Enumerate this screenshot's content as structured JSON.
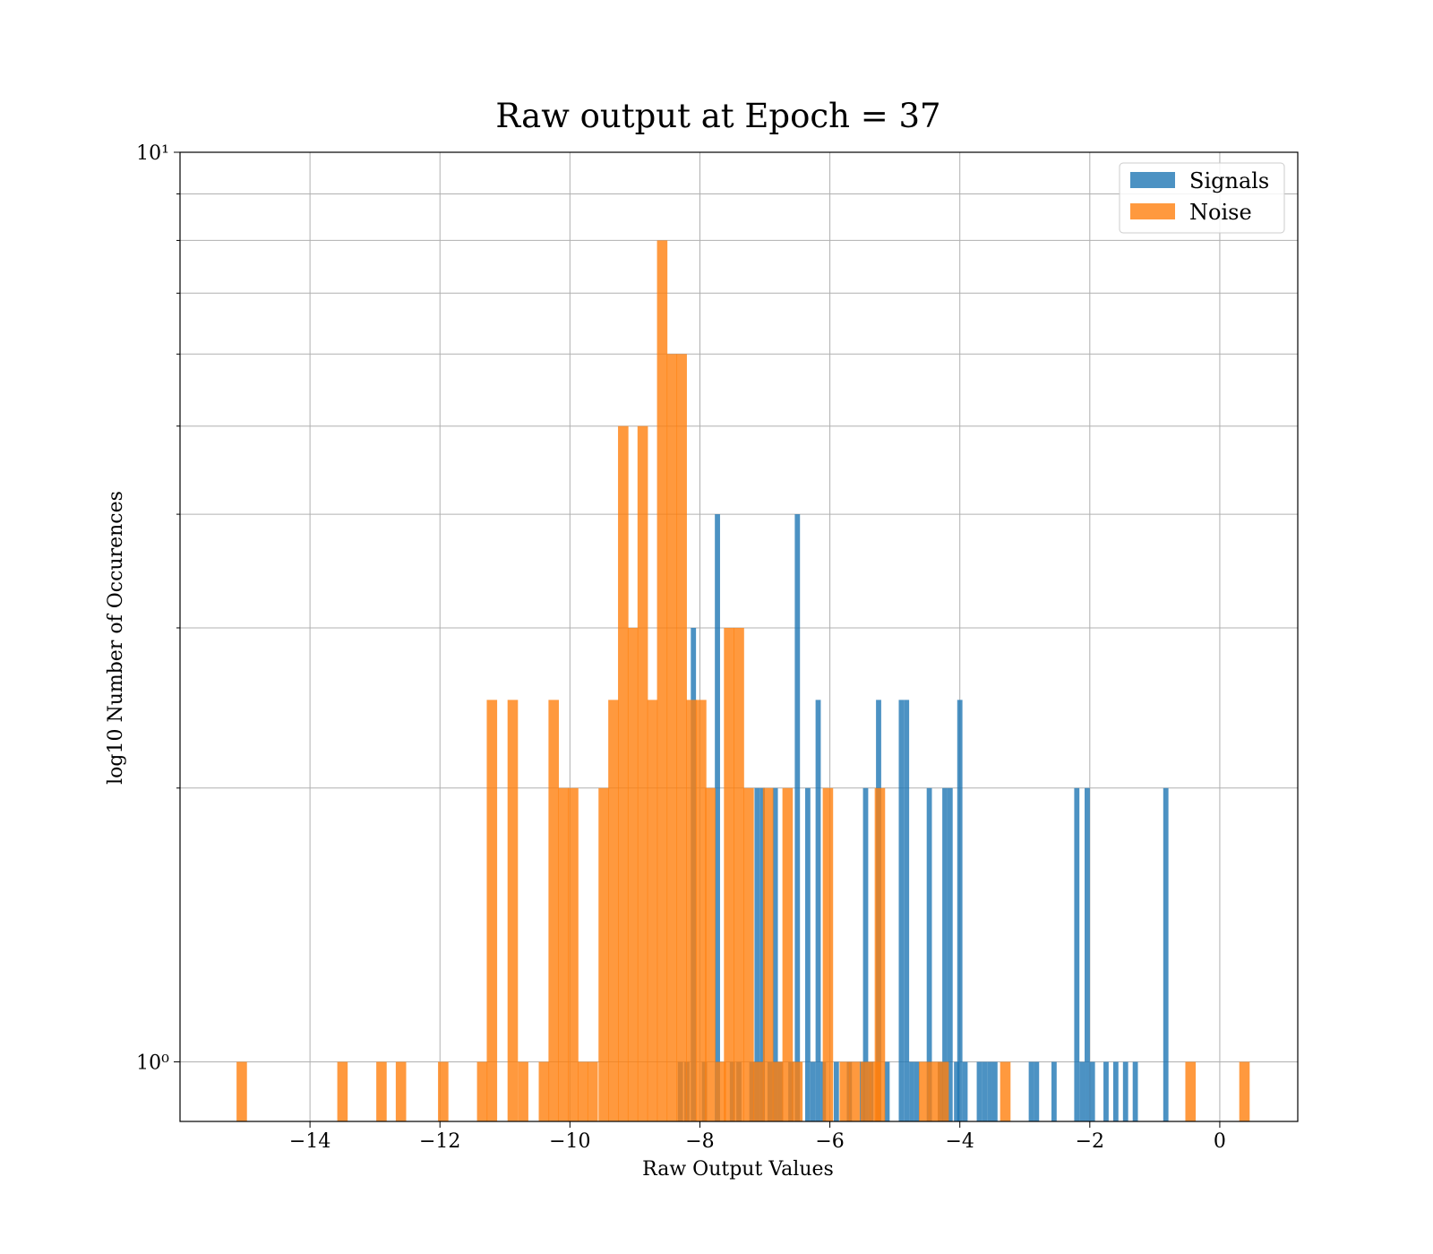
{
  "chart_data": {
    "type": "bar",
    "title": "Raw output at Epoch = 37",
    "xlabel": "Raw Output Values",
    "ylabel": "log10 Number of Occurences",
    "yscale": "log",
    "xlim": [
      -16.0,
      1.2
    ],
    "ylim": [
      0.86,
      10
    ],
    "grid": true,
    "legend_position": "top-right",
    "x_ticks": [
      {
        "value": -14,
        "label": "−14"
      },
      {
        "value": -12,
        "label": "−12"
      },
      {
        "value": -10,
        "label": "−10"
      },
      {
        "value": -8,
        "label": "−8"
      },
      {
        "value": -6,
        "label": "−6"
      },
      {
        "value": -4,
        "label": "−4"
      },
      {
        "value": -2,
        "label": "−2"
      },
      {
        "value": 0,
        "label": "0"
      }
    ],
    "y_ticks": [
      {
        "value": 1,
        "label": "10⁰"
      },
      {
        "value": 10,
        "label": "10¹"
      }
    ],
    "series": [
      {
        "name": "Signals",
        "color": "#1f77b4",
        "bin_width": 0.08,
        "bins": [
          [
            -8.3,
            1
          ],
          [
            -8.2,
            1
          ],
          [
            -8.1,
            3
          ],
          [
            -7.93,
            1
          ],
          [
            -7.73,
            4
          ],
          [
            -7.5,
            1
          ],
          [
            -7.4,
            1
          ],
          [
            -7.2,
            1
          ],
          [
            -7.12,
            2
          ],
          [
            -7.04,
            2
          ],
          [
            -6.92,
            1
          ],
          [
            -6.84,
            2
          ],
          [
            -6.76,
            1
          ],
          [
            -6.6,
            1
          ],
          [
            -6.5,
            4
          ],
          [
            -6.34,
            2
          ],
          [
            -6.26,
            1
          ],
          [
            -6.18,
            2.5
          ],
          [
            -6.1,
            1
          ],
          [
            -5.9,
            1
          ],
          [
            -5.7,
            1
          ],
          [
            -5.5,
            1
          ],
          [
            -5.45,
            2
          ],
          [
            -5.37,
            1
          ],
          [
            -5.25,
            2.5
          ],
          [
            -5.12,
            1
          ],
          [
            -4.9,
            2.5
          ],
          [
            -4.82,
            2.5
          ],
          [
            -4.74,
            1
          ],
          [
            -4.66,
            1
          ],
          [
            -4.47,
            2
          ],
          [
            -4.3,
            1
          ],
          [
            -4.23,
            2
          ],
          [
            -4.15,
            2
          ],
          [
            -4.05,
            1
          ],
          [
            -4.0,
            2.5
          ],
          [
            -3.92,
            1
          ],
          [
            -3.7,
            1
          ],
          [
            -3.62,
            1
          ],
          [
            -3.54,
            1
          ],
          [
            -3.46,
            1
          ],
          [
            -2.9,
            1
          ],
          [
            -2.82,
            1
          ],
          [
            -2.55,
            1
          ],
          [
            -2.2,
            2
          ],
          [
            -2.12,
            1
          ],
          [
            -2.04,
            2
          ],
          [
            -1.96,
            1
          ],
          [
            -1.75,
            1
          ],
          [
            -1.6,
            1
          ],
          [
            -1.45,
            1
          ],
          [
            -1.3,
            1
          ],
          [
            -0.83,
            2
          ]
        ]
      },
      {
        "name": "Noise",
        "color": "#ff7f0e",
        "bin_width": 0.16,
        "bins": [
          [
            -15.05,
            1
          ],
          [
            -13.5,
            1
          ],
          [
            -12.9,
            1
          ],
          [
            -12.6,
            1
          ],
          [
            -11.95,
            1
          ],
          [
            -11.35,
            1
          ],
          [
            -11.2,
            2.5
          ],
          [
            -10.88,
            2.5
          ],
          [
            -10.72,
            1
          ],
          [
            -10.4,
            1
          ],
          [
            -10.25,
            2.5
          ],
          [
            -10.1,
            2
          ],
          [
            -9.95,
            2
          ],
          [
            -9.8,
            1
          ],
          [
            -9.65,
            1
          ],
          [
            -9.48,
            2
          ],
          [
            -9.33,
            2.5
          ],
          [
            -9.18,
            5
          ],
          [
            -9.03,
            3
          ],
          [
            -8.88,
            5
          ],
          [
            -8.73,
            2.5
          ],
          [
            -8.58,
            8
          ],
          [
            -8.43,
            6
          ],
          [
            -8.28,
            6
          ],
          [
            -8.13,
            2.5
          ],
          [
            -7.98,
            2.5
          ],
          [
            -7.84,
            2
          ],
          [
            -7.68,
            1
          ],
          [
            -7.55,
            3
          ],
          [
            -7.4,
            3
          ],
          [
            -7.25,
            2
          ],
          [
            -7.1,
            1
          ],
          [
            -6.95,
            2
          ],
          [
            -6.8,
            1
          ],
          [
            -6.65,
            2
          ],
          [
            -6.5,
            1
          ],
          [
            -6.03,
            2
          ],
          [
            -5.77,
            1
          ],
          [
            -5.62,
            1
          ],
          [
            -5.45,
            1
          ],
          [
            -5.3,
            1
          ],
          [
            -5.23,
            2
          ],
          [
            -4.55,
            1
          ],
          [
            -4.4,
            1
          ],
          [
            -4.25,
            1
          ],
          [
            -3.3,
            1
          ],
          [
            -0.45,
            1
          ],
          [
            0.38,
            1
          ]
        ]
      }
    ]
  }
}
